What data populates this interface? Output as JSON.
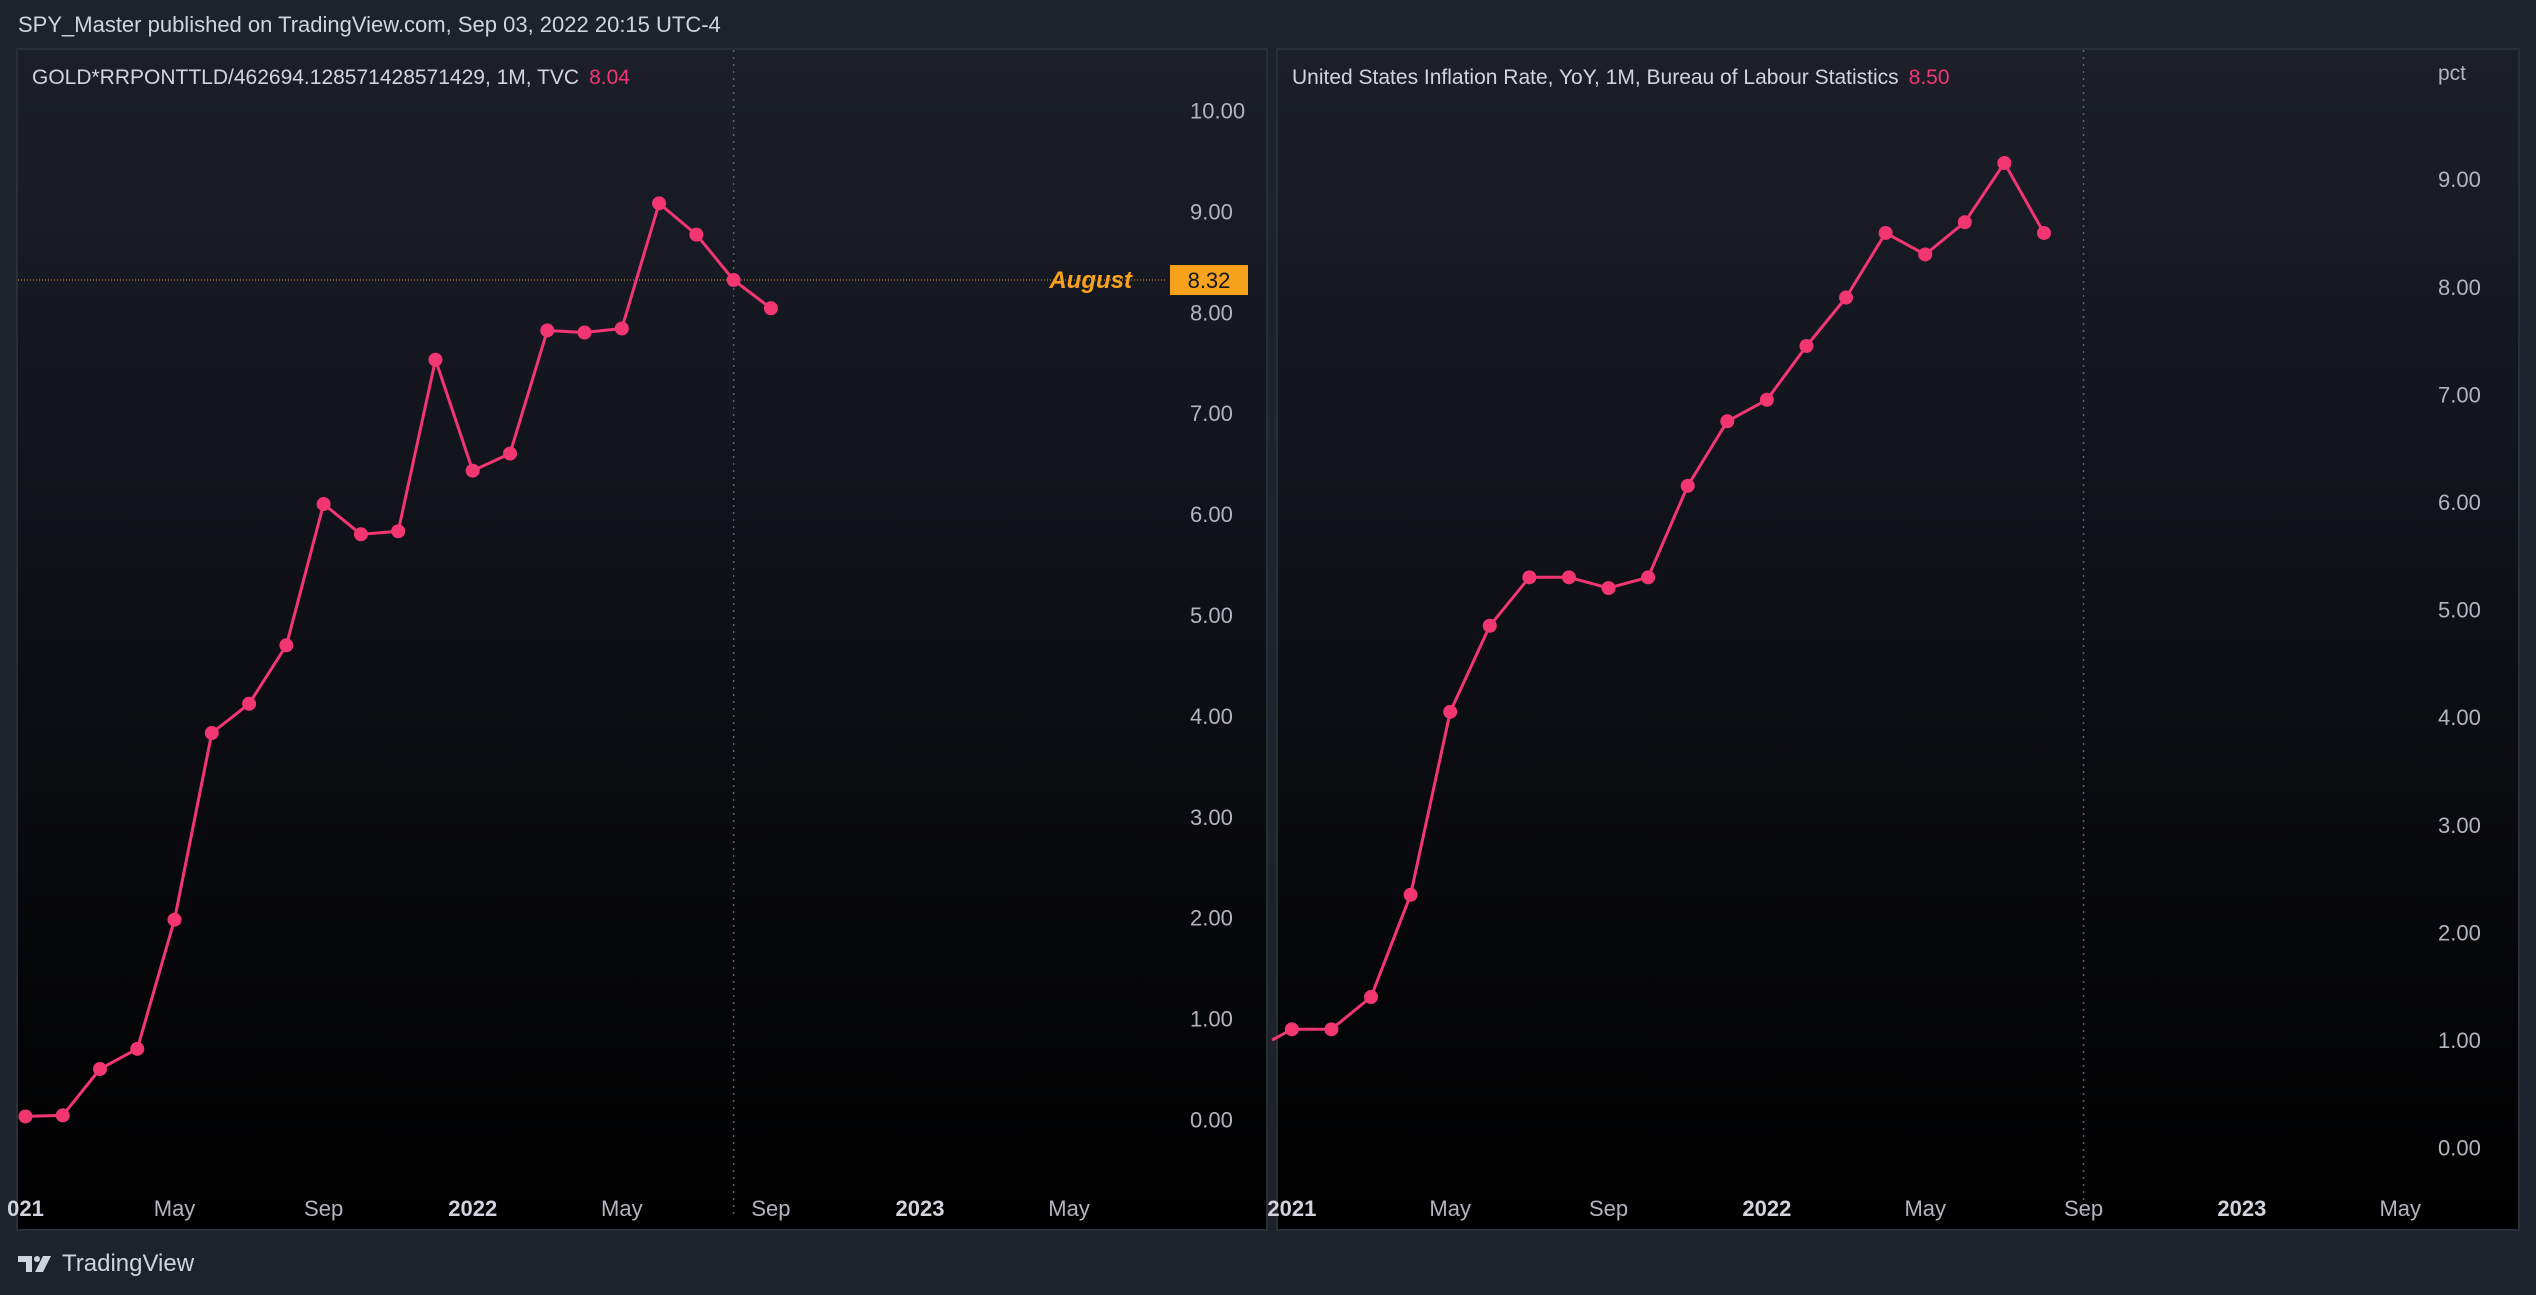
{
  "header": {
    "published_text": "SPY_Master published on TradingView.com, Sep 03, 2022 20:15 UTC-4"
  },
  "footer": {
    "brand": "TradingView"
  },
  "colors": {
    "line": "#f23672",
    "marker_line": "#f7a21b",
    "text": "#d1d4dc",
    "axis_text": "#b2b5be",
    "background_top": "#1c1f2a",
    "background_bottom": "#000000"
  },
  "chart_data": [
    {
      "type": "line",
      "legend": {
        "symbol": "GOLD*RRPONTTLD/462694.128571428571429, 1M, TVC",
        "value": "8.04"
      },
      "ylim": [
        -0.6,
        10.6
      ],
      "y_ticks": [
        0,
        1,
        2,
        3,
        4,
        5,
        6,
        7,
        8,
        9,
        10
      ],
      "y_tick_labels": [
        "0.00",
        "1.00",
        "2.00",
        "3.00",
        "4.00",
        "5.00",
        "6.00",
        "7.00",
        "8.00",
        "9.00",
        "10.00"
      ],
      "x_labels": [
        {
          "label": "021",
          "month": 0,
          "bold": true
        },
        {
          "label": "May",
          "month": 4,
          "bold": false
        },
        {
          "label": "Sep",
          "month": 8,
          "bold": false
        },
        {
          "label": "2022",
          "month": 12,
          "bold": true
        },
        {
          "label": "May",
          "month": 16,
          "bold": false
        },
        {
          "label": "Sep",
          "month": 20,
          "bold": false
        },
        {
          "label": "2023",
          "month": 24,
          "bold": true
        },
        {
          "label": "May",
          "month": 28,
          "bold": false
        }
      ],
      "x_month_range": [
        -0.2,
        30.6
      ],
      "series": [
        {
          "x": [
            0,
            1,
            2,
            3,
            4,
            5,
            6,
            7,
            8,
            9,
            10,
            11,
            12,
            13,
            14,
            15,
            16,
            17,
            18,
            19,
            20
          ],
          "y": [
            0.03,
            0.04,
            0.5,
            0.7,
            1.98,
            3.83,
            4.12,
            4.7,
            6.1,
            5.8,
            5.83,
            7.53,
            6.43,
            6.6,
            7.82,
            7.8,
            7.84,
            9.08,
            8.77,
            8.32,
            8.04
          ]
        }
      ],
      "marker": {
        "label": "August",
        "value": 8.32,
        "badge": "8.32",
        "month": 19
      }
    },
    {
      "type": "line",
      "legend": {
        "symbol": "United States Inflation Rate, YoY, 1M, Bureau of Labour Statistics",
        "value": "8.50"
      },
      "unit_label": "pct",
      "ylim": [
        -0.3,
        10.2
      ],
      "y_ticks": [
        0,
        1,
        2,
        3,
        4,
        5,
        6,
        7,
        8,
        9
      ],
      "y_tick_labels": [
        "0.00",
        "1.00",
        "2.00",
        "3.00",
        "4.00",
        "5.00",
        "6.00",
        "7.00",
        "8.00",
        "9.00"
      ],
      "x_labels": [
        {
          "label": "2021",
          "month": 0,
          "bold": true
        },
        {
          "label": "May",
          "month": 4,
          "bold": false
        },
        {
          "label": "Sep",
          "month": 8,
          "bold": false
        },
        {
          "label": "2022",
          "month": 12,
          "bold": true
        },
        {
          "label": "May",
          "month": 16,
          "bold": false
        },
        {
          "label": "Sep",
          "month": 20,
          "bold": false
        },
        {
          "label": "2023",
          "month": 24,
          "bold": true
        },
        {
          "label": "May",
          "month": 28,
          "bold": false
        }
      ],
      "x_month_range": [
        -0.35,
        28.6
      ],
      "series": [
        {
          "x": [
            -0.5,
            0,
            1,
            2,
            3,
            4,
            5,
            6,
            7,
            8,
            9,
            10,
            11,
            12,
            13,
            14,
            15,
            16,
            17,
            18,
            19
          ],
          "y": [
            1.0,
            1.1,
            1.1,
            1.4,
            2.35,
            4.05,
            4.85,
            5.3,
            5.3,
            5.2,
            5.3,
            6.15,
            6.75,
            6.95,
            7.45,
            7.9,
            8.5,
            8.3,
            8.6,
            9.15,
            8.5
          ]
        }
      ],
      "marker": {
        "month": 20
      }
    }
  ]
}
